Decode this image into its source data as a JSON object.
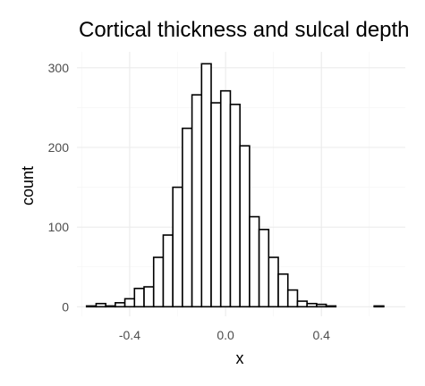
{
  "chart_data": {
    "type": "bar",
    "subtype": "histogram",
    "title": "Cortical thickness and sulcal depth",
    "xlabel": "x",
    "ylabel": "count",
    "xlim": [
      -0.62,
      0.75
    ],
    "ylim": [
      -12,
      320
    ],
    "x_ticks": [
      -0.4,
      0.0,
      0.4
    ],
    "x_tick_labels": [
      "-0.4",
      "0.0",
      "0.4"
    ],
    "y_ticks": [
      0,
      100,
      200,
      300
    ],
    "y_tick_labels": [
      "0",
      "100",
      "200",
      "300"
    ],
    "grid": true,
    "bin_width": 0.04,
    "bins": [
      {
        "x0": -0.58,
        "x1": -0.54,
        "count": 1
      },
      {
        "x0": -0.54,
        "x1": -0.5,
        "count": 4
      },
      {
        "x0": -0.5,
        "x1": -0.46,
        "count": 1
      },
      {
        "x0": -0.46,
        "x1": -0.42,
        "count": 5
      },
      {
        "x0": -0.42,
        "x1": -0.38,
        "count": 10
      },
      {
        "x0": -0.38,
        "x1": -0.34,
        "count": 23
      },
      {
        "x0": -0.34,
        "x1": -0.3,
        "count": 25
      },
      {
        "x0": -0.3,
        "x1": -0.26,
        "count": 62
      },
      {
        "x0": -0.26,
        "x1": -0.22,
        "count": 90
      },
      {
        "x0": -0.22,
        "x1": -0.18,
        "count": 150
      },
      {
        "x0": -0.18,
        "x1": -0.14,
        "count": 224
      },
      {
        "x0": -0.14,
        "x1": -0.1,
        "count": 266
      },
      {
        "x0": -0.1,
        "x1": -0.06,
        "count": 305
      },
      {
        "x0": -0.06,
        "x1": -0.02,
        "count": 256
      },
      {
        "x0": -0.02,
        "x1": 0.02,
        "count": 271
      },
      {
        "x0": 0.02,
        "x1": 0.06,
        "count": 254
      },
      {
        "x0": 0.06,
        "x1": 0.1,
        "count": 202
      },
      {
        "x0": 0.1,
        "x1": 0.14,
        "count": 113
      },
      {
        "x0": 0.14,
        "x1": 0.18,
        "count": 97
      },
      {
        "x0": 0.18,
        "x1": 0.22,
        "count": 62
      },
      {
        "x0": 0.22,
        "x1": 0.26,
        "count": 41
      },
      {
        "x0": 0.26,
        "x1": 0.3,
        "count": 21
      },
      {
        "x0": 0.3,
        "x1": 0.34,
        "count": 7
      },
      {
        "x0": 0.34,
        "x1": 0.38,
        "count": 4
      },
      {
        "x0": 0.38,
        "x1": 0.42,
        "count": 3
      },
      {
        "x0": 0.42,
        "x1": 0.46,
        "count": 1
      },
      {
        "x0": 0.46,
        "x1": 0.5,
        "count": 0
      },
      {
        "x0": 0.5,
        "x1": 0.54,
        "count": 0
      },
      {
        "x0": 0.54,
        "x1": 0.58,
        "count": 0
      },
      {
        "x0": 0.58,
        "x1": 0.62,
        "count": 0
      },
      {
        "x0": 0.62,
        "x1": 0.66,
        "count": 1
      }
    ],
    "bar_fill": "#ffffff",
    "bar_stroke": "#000000",
    "background": "#ffffff",
    "grid_color": "#ebebeb"
  }
}
